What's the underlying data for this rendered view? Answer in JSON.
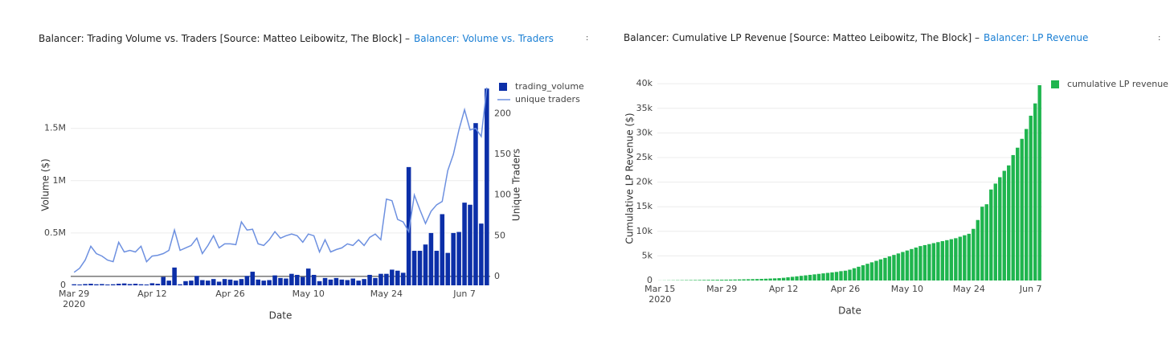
{
  "chart_data": [
    {
      "type": "bar",
      "title": "Balancer: Trading Volume vs. Traders [Source: Matteo Leibowitz, The Block] –",
      "link": "Balancer: Volume vs. Traders",
      "xlabel": "Date",
      "ylabel": "Volume ($)",
      "y2label": "Unique Traders",
      "x": [
        "2020-03-29",
        "2020-03-30",
        "2020-03-31",
        "2020-04-01",
        "2020-04-02",
        "2020-04-03",
        "2020-04-04",
        "2020-04-05",
        "2020-04-06",
        "2020-04-07",
        "2020-04-08",
        "2020-04-09",
        "2020-04-10",
        "2020-04-11",
        "2020-04-12",
        "2020-04-13",
        "2020-04-14",
        "2020-04-15",
        "2020-04-16",
        "2020-04-17",
        "2020-04-18",
        "2020-04-19",
        "2020-04-20",
        "2020-04-21",
        "2020-04-22",
        "2020-04-23",
        "2020-04-24",
        "2020-04-25",
        "2020-04-26",
        "2020-04-27",
        "2020-04-28",
        "2020-04-29",
        "2020-04-30",
        "2020-05-01",
        "2020-05-02",
        "2020-05-03",
        "2020-05-04",
        "2020-05-05",
        "2020-05-06",
        "2020-05-07",
        "2020-05-08",
        "2020-05-09",
        "2020-05-10",
        "2020-05-11",
        "2020-05-12",
        "2020-05-13",
        "2020-05-14",
        "2020-05-15",
        "2020-05-16",
        "2020-05-17",
        "2020-05-18",
        "2020-05-19",
        "2020-05-20",
        "2020-05-21",
        "2020-05-22",
        "2020-05-23",
        "2020-05-24",
        "2020-05-25",
        "2020-05-26",
        "2020-05-27",
        "2020-05-28",
        "2020-05-29",
        "2020-05-30",
        "2020-05-31",
        "2020-06-01",
        "2020-06-02",
        "2020-06-03",
        "2020-06-04",
        "2020-06-05",
        "2020-06-06",
        "2020-06-07",
        "2020-06-08",
        "2020-06-09",
        "2020-06-10",
        "2020-06-11"
      ],
      "series": [
        {
          "name": "trading_volume",
          "type": "bar",
          "color": "#0c2fa8",
          "values": [
            10000,
            8000,
            12000,
            15000,
            10000,
            12000,
            8000,
            10000,
            15000,
            18000,
            12000,
            15000,
            10000,
            8000,
            20000,
            15000,
            80000,
            45000,
            170000,
            10000,
            40000,
            45000,
            90000,
            50000,
            45000,
            60000,
            35000,
            60000,
            55000,
            45000,
            60000,
            90000,
            130000,
            55000,
            45000,
            50000,
            95000,
            70000,
            65000,
            110000,
            100000,
            80000,
            160000,
            100000,
            40000,
            70000,
            55000,
            70000,
            55000,
            50000,
            65000,
            45000,
            60000,
            100000,
            70000,
            110000,
            110000,
            150000,
            140000,
            120000,
            1130000,
            330000,
            330000,
            390000,
            500000,
            330000,
            680000,
            310000,
            500000,
            510000,
            790000,
            770000,
            1550000,
            590000,
            1880000
          ]
        },
        {
          "name": "unique traders",
          "type": "line",
          "axis": "y2",
          "color": "#6d90e0",
          "values": [
            5,
            10,
            20,
            37,
            28,
            25,
            20,
            18,
            42,
            30,
            32,
            30,
            37,
            18,
            25,
            26,
            28,
            32,
            57,
            32,
            35,
            38,
            47,
            28,
            38,
            50,
            35,
            40,
            40,
            39,
            67,
            57,
            58,
            40,
            38,
            45,
            55,
            47,
            50,
            52,
            50,
            42,
            52,
            50,
            30,
            45,
            30,
            33,
            35,
            40,
            38,
            45,
            38,
            48,
            52,
            45,
            95,
            93,
            70,
            67,
            55,
            100,
            82,
            65,
            80,
            88,
            92,
            130,
            150,
            180,
            205,
            180,
            182,
            172,
            232
          ]
        }
      ],
      "ylim": [
        0,
        1920000
      ],
      "yticks": [
        0,
        {
          "value": 500000,
          "label": "0.5M"
        },
        {
          "value": 1000000,
          "label": "1M"
        },
        {
          "value": 1500000,
          "label": "1.5M"
        }
      ],
      "y2lim": [
        -11,
        236
      ],
      "y2ticks": [
        0,
        50,
        100,
        150,
        200
      ],
      "xticks": [
        {
          "value": "2020-03-29",
          "label": "Mar 29\n2020"
        },
        {
          "value": "2020-04-12",
          "label": "Apr 12"
        },
        {
          "value": "2020-04-26",
          "label": "Apr 26"
        },
        {
          "value": "2020-05-10",
          "label": "May 10"
        },
        {
          "value": "2020-05-24",
          "label": "May 24"
        },
        {
          "value": "2020-06-07",
          "label": "Jun 7"
        }
      ],
      "grid": true
    },
    {
      "type": "bar",
      "title": "Balancer: Cumulative LP Revenue [Source: Matteo Leibowitz, The Block] –",
      "link": "Balancer: LP Revenue",
      "xlabel": "Date",
      "ylabel": "Cumulative LP Revenue ($)",
      "x": [
        "2020-03-15",
        "2020-03-16",
        "2020-03-17",
        "2020-03-18",
        "2020-03-19",
        "2020-03-20",
        "2020-03-21",
        "2020-03-22",
        "2020-03-23",
        "2020-03-24",
        "2020-03-25",
        "2020-03-26",
        "2020-03-27",
        "2020-03-28",
        "2020-03-29",
        "2020-03-30",
        "2020-03-31",
        "2020-04-01",
        "2020-04-02",
        "2020-04-03",
        "2020-04-04",
        "2020-04-05",
        "2020-04-06",
        "2020-04-07",
        "2020-04-08",
        "2020-04-09",
        "2020-04-10",
        "2020-04-11",
        "2020-04-12",
        "2020-04-13",
        "2020-04-14",
        "2020-04-15",
        "2020-04-16",
        "2020-04-17",
        "2020-04-18",
        "2020-04-19",
        "2020-04-20",
        "2020-04-21",
        "2020-04-22",
        "2020-04-23",
        "2020-04-24",
        "2020-04-25",
        "2020-04-26",
        "2020-04-27",
        "2020-04-28",
        "2020-04-29",
        "2020-04-30",
        "2020-05-01",
        "2020-05-02",
        "2020-05-03",
        "2020-05-04",
        "2020-05-05",
        "2020-05-06",
        "2020-05-07",
        "2020-05-08",
        "2020-05-09",
        "2020-05-10",
        "2020-05-11",
        "2020-05-12",
        "2020-05-13",
        "2020-05-14",
        "2020-05-15",
        "2020-05-16",
        "2020-05-17",
        "2020-05-18",
        "2020-05-19",
        "2020-05-20",
        "2020-05-21",
        "2020-05-22",
        "2020-05-23",
        "2020-05-24",
        "2020-05-25",
        "2020-05-26",
        "2020-05-27",
        "2020-05-28",
        "2020-05-29",
        "2020-05-30",
        "2020-05-31",
        "2020-06-01",
        "2020-06-02",
        "2020-06-03",
        "2020-06-04",
        "2020-06-05",
        "2020-06-06",
        "2020-06-07",
        "2020-06-08",
        "2020-06-09"
      ],
      "series": [
        {
          "name": "cumulative LP revenue",
          "type": "bar",
          "color": "#1fb54e",
          "values": [
            20,
            30,
            40,
            50,
            60,
            70,
            80,
            90,
            100,
            110,
            120,
            130,
            140,
            150,
            160,
            170,
            180,
            200,
            220,
            240,
            260,
            280,
            300,
            330,
            360,
            400,
            440,
            480,
            550,
            650,
            750,
            850,
            950,
            1050,
            1150,
            1250,
            1350,
            1450,
            1550,
            1650,
            1750,
            1900,
            2000,
            2200,
            2500,
            2800,
            3100,
            3400,
            3700,
            4000,
            4300,
            4600,
            4900,
            5200,
            5500,
            5800,
            6100,
            6400,
            6700,
            7000,
            7200,
            7400,
            7600,
            7800,
            8000,
            8200,
            8400,
            8600,
            8900,
            9200,
            9500,
            10500,
            12300,
            15000,
            15500,
            18500,
            19700,
            21000,
            22300,
            23400,
            25500,
            27000,
            28800,
            30800,
            33500,
            36000,
            39700
          ]
        }
      ],
      "ylim": [
        0,
        41500
      ],
      "yticks": [
        0,
        {
          "value": 5000,
          "label": "5k"
        },
        {
          "value": 10000,
          "label": "10k"
        },
        {
          "value": 15000,
          "label": "15k"
        },
        {
          "value": 20000,
          "label": "20k"
        },
        {
          "value": 25000,
          "label": "25k"
        },
        {
          "value": 30000,
          "label": "30k"
        },
        {
          "value": 35000,
          "label": "35k"
        },
        {
          "value": 40000,
          "label": "40k"
        }
      ],
      "xticks": [
        {
          "value": "2020-03-15",
          "label": "Mar 15\n2020"
        },
        {
          "value": "2020-03-29",
          "label": "Mar 29"
        },
        {
          "value": "2020-04-12",
          "label": "Apr 12"
        },
        {
          "value": "2020-04-26",
          "label": "Apr 26"
        },
        {
          "value": "2020-05-10",
          "label": "May 10"
        },
        {
          "value": "2020-05-24",
          "label": "May 24"
        },
        {
          "value": "2020-06-07",
          "label": "Jun 7"
        }
      ],
      "grid": true
    }
  ]
}
